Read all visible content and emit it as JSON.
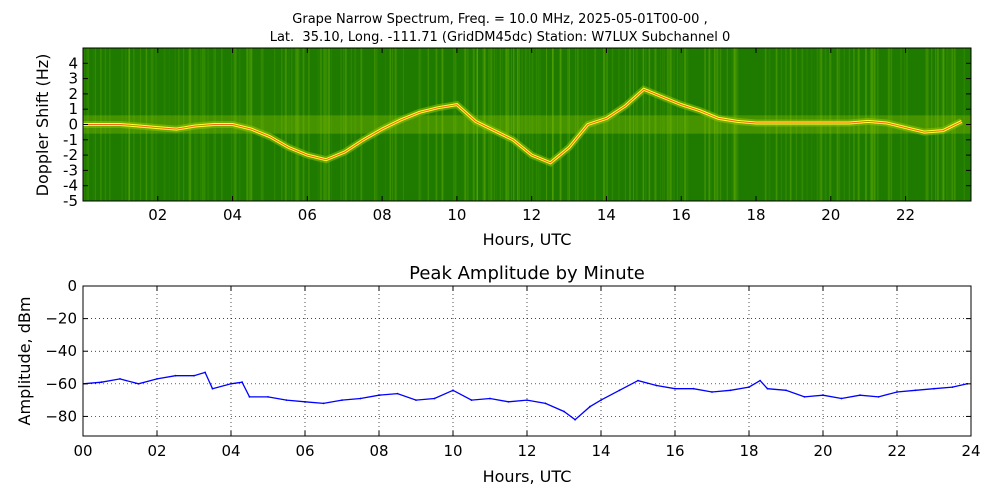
{
  "figure": {
    "title_line1": "Grape Narrow Spectrum, Freq. = 10.0 MHz, 2025-05-01T00-00 ,",
    "title_line2": "Lat.  35.10, Long. -111.71 (GridDM45dc) Station: W7LUX Subchannel 0"
  },
  "chart_data": [
    {
      "type": "heatmap",
      "title": "",
      "xlabel": "Hours, UTC",
      "ylabel": "Doppler Shift (Hz)",
      "xlim": [
        0,
        23.75
      ],
      "ylim": [
        -5,
        5
      ],
      "xticks": [
        2,
        4,
        6,
        8,
        10,
        12,
        14,
        16,
        18,
        20,
        22
      ],
      "xtick_labels": [
        "02",
        "04",
        "06",
        "08",
        "10",
        "12",
        "14",
        "16",
        "18",
        "20",
        "22"
      ],
      "yticks": [
        -5,
        -4,
        -3,
        -2,
        -1,
        0,
        1,
        2,
        3,
        4
      ],
      "ytick_labels": [
        "-5",
        "-4",
        "-3",
        "-2",
        "-1",
        "0",
        "1",
        "2",
        "3",
        "4"
      ],
      "colors": {
        "background": "#1f7a00",
        "mid": "#8fc400",
        "high": "#ffff33",
        "peak": "#ff2200"
      },
      "trace": {
        "x": [
          0,
          0.5,
          1,
          1.5,
          2,
          2.5,
          3,
          3.5,
          4,
          4.5,
          5,
          5.5,
          6,
          6.5,
          7,
          7.5,
          8,
          8.5,
          9,
          9.5,
          10,
          10.5,
          11,
          11.5,
          12,
          12.5,
          13,
          13.5,
          14,
          14.5,
          15,
          15.5,
          16,
          16.5,
          17,
          17.5,
          18,
          18.5,
          19,
          19.5,
          20,
          20.5,
          21,
          21.5,
          22,
          22.5,
          23,
          23.5
        ],
        "doppler": [
          0,
          0,
          0,
          -0.1,
          -0.2,
          -0.3,
          -0.1,
          0,
          0,
          -0.3,
          -0.8,
          -1.5,
          -2,
          -2.3,
          -1.8,
          -1,
          -0.3,
          0.3,
          0.8,
          1.1,
          1.3,
          0.2,
          -0.4,
          -1,
          -2,
          -2.5,
          -1.5,
          0,
          0.4,
          1.2,
          2.3,
          1.8,
          1.3,
          0.9,
          0.4,
          0.2,
          0.1,
          0.1,
          0.1,
          0.1,
          0.1,
          0.1,
          0.2,
          0.1,
          -0.2,
          -0.5,
          -0.4,
          0.2
        ]
      }
    },
    {
      "type": "line",
      "title": "Peak Amplitude by Minute",
      "xlabel": "Hours, UTC",
      "ylabel": "Amplitude, dBm",
      "xlim": [
        0,
        24
      ],
      "ylim": [
        -92,
        0
      ],
      "grid": true,
      "xticks": [
        0,
        2,
        4,
        6,
        8,
        10,
        12,
        14,
        16,
        18,
        20,
        22,
        24
      ],
      "xtick_labels": [
        "00",
        "02",
        "04",
        "06",
        "08",
        "10",
        "12",
        "14",
        "16",
        "18",
        "20",
        "22",
        "24"
      ],
      "yticks": [
        0,
        -20,
        -40,
        -60,
        -80
      ],
      "ytick_labels": [
        "0",
        "−20",
        "−40",
        "−60",
        "−80"
      ],
      "line_color": "#0000ff",
      "series": [
        {
          "x": [
            0,
            0.5,
            1,
            1.5,
            2,
            2.5,
            3,
            3.3,
            3.5,
            4,
            4.3,
            4.5,
            5,
            5.5,
            6,
            6.5,
            7,
            7.5,
            8,
            8.5,
            9,
            9.5,
            10,
            10.5,
            11,
            11.5,
            12,
            12.5,
            13,
            13.3,
            13.7,
            14,
            14.5,
            15,
            15.5,
            16,
            16.5,
            17,
            17.5,
            18,
            18.3,
            18.5,
            19,
            19.5,
            20,
            20.5,
            21,
            21.5,
            22,
            22.5,
            23,
            23.5,
            23.9
          ],
          "values": [
            -60,
            -59,
            -57,
            -60,
            -57,
            -55,
            -55,
            -53,
            -63,
            -60,
            -59,
            -68,
            -68,
            -70,
            -71,
            -72,
            -70,
            -69,
            -67,
            -66,
            -70,
            -69,
            -64,
            -70,
            -69,
            -71,
            -70,
            -72,
            -77,
            -82,
            -74,
            -70,
            -64,
            -58,
            -61,
            -63,
            -63,
            -65,
            -64,
            -62,
            -58,
            -63,
            -64,
            -68,
            -67,
            -69,
            -67,
            -68,
            -65,
            -64,
            -63,
            -62,
            -60
          ]
        }
      ]
    }
  ]
}
